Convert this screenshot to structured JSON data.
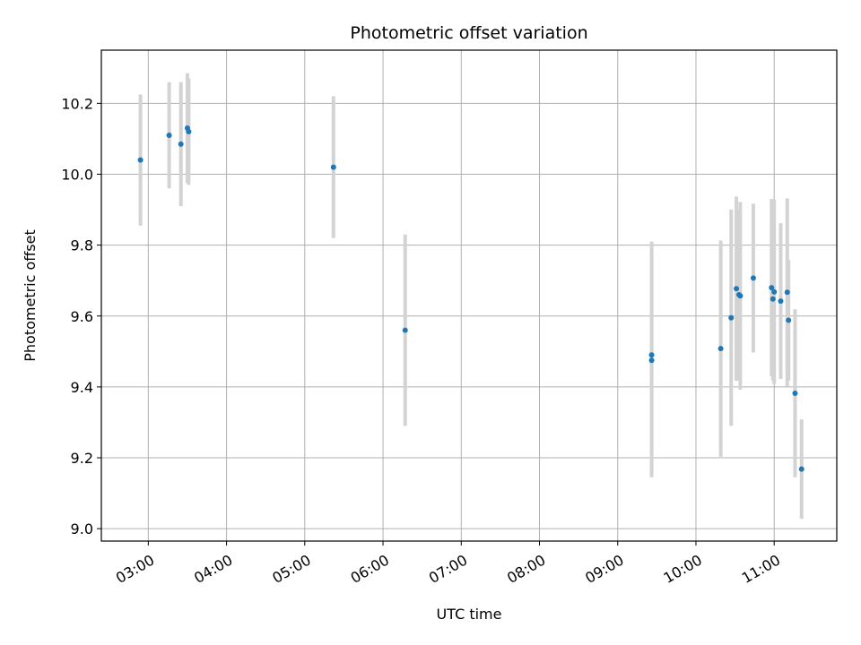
{
  "chart_data": {
    "type": "scatter",
    "title": "Photometric offset variation",
    "xlabel": "UTC time",
    "ylabel": "Photometric offset",
    "x_ticks": [
      "03:00",
      "04:00",
      "05:00",
      "06:00",
      "07:00",
      "08:00",
      "09:00",
      "10:00",
      "11:00"
    ],
    "y_ticks": [
      "9.0",
      "9.2",
      "9.4",
      "9.6",
      "9.8",
      "10.0",
      "10.2"
    ],
    "xlim": [
      "02:24",
      "11:48"
    ],
    "ylim": [
      8.965,
      10.35
    ],
    "grid": true,
    "point_color": "#1f77b4",
    "errorbar_color": "#d3d3d3",
    "points": [
      {
        "x": "02:54",
        "y": 10.04,
        "err": 0.185
      },
      {
        "x": "03:16",
        "y": 10.11,
        "err": 0.15
      },
      {
        "x": "03:25",
        "y": 10.085,
        "err": 0.175
      },
      {
        "x": "03:30",
        "y": 10.13,
        "err": 0.155
      },
      {
        "x": "03:31",
        "y": 10.12,
        "err": 0.15
      },
      {
        "x": "05:22",
        "y": 10.02,
        "err": 0.2
      },
      {
        "x": "06:17",
        "y": 9.56,
        "err": 0.27
      },
      {
        "x": "09:26",
        "y": 9.49,
        "err": 0.32
      },
      {
        "x": "09:26",
        "y": 9.475,
        "err": 0.33
      },
      {
        "x": "10:19",
        "y": 9.508,
        "err": 0.305
      },
      {
        "x": "10:27",
        "y": 9.595,
        "err": 0.305
      },
      {
        "x": "10:31",
        "y": 9.677,
        "err": 0.26
      },
      {
        "x": "10:33",
        "y": 9.66,
        "err": 0.24
      },
      {
        "x": "10:34",
        "y": 9.657,
        "err": 0.265
      },
      {
        "x": "10:44",
        "y": 9.707,
        "err": 0.21
      },
      {
        "x": "10:58",
        "y": 9.68,
        "err": 0.25
      },
      {
        "x": "10:59",
        "y": 9.648,
        "err": 0.23
      },
      {
        "x": "11:00",
        "y": 9.668,
        "err": 0.26
      },
      {
        "x": "11:05",
        "y": 9.642,
        "err": 0.22
      },
      {
        "x": "11:10",
        "y": 9.667,
        "err": 0.265
      },
      {
        "x": "11:11",
        "y": 9.588,
        "err": 0.17
      },
      {
        "x": "11:16",
        "y": 9.382,
        "err": 0.237
      },
      {
        "x": "11:21",
        "y": 9.168,
        "err": 0.14
      }
    ]
  }
}
